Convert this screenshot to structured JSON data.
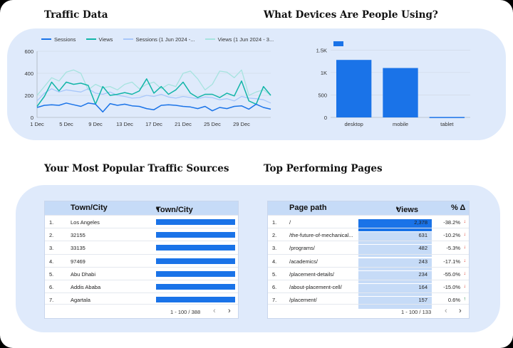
{
  "headings": {
    "traffic": "Traffic Data",
    "devices": "What Devices Are People Using?",
    "sources": "Your Most Popular Traffic Sources",
    "pages": "Top Performing Pages"
  },
  "line_legend": [
    {
      "label": "Sessions",
      "color": "#1a73e8"
    },
    {
      "label": "Views",
      "color": "#12b5a8"
    },
    {
      "label": "Sessions (1 Jun 2024 -...",
      "color": "#a8c7fa"
    },
    {
      "label": "Views (1 Jun 2024 - 3...",
      "color": "#a6e3df"
    }
  ],
  "chart_data": [
    {
      "type": "line",
      "x_tick_labels": [
        "1 Dec",
        "5 Dec",
        "9 Dec",
        "13 Dec",
        "17 Dec",
        "21 Dec",
        "25 Dec",
        "29 Dec"
      ],
      "y_tick_labels": [
        "0",
        "200",
        "400",
        "600"
      ],
      "ylim": [
        0,
        600
      ],
      "grid": true,
      "legend_position": "top",
      "series": [
        {
          "name": "Sessions",
          "color": "#1a73e8",
          "values": [
            90,
            110,
            115,
            110,
            130,
            115,
            100,
            130,
            120,
            50,
            125,
            110,
            120,
            105,
            100,
            80,
            70,
            110,
            115,
            110,
            100,
            95,
            80,
            100,
            60,
            90,
            80,
            100,
            105,
            75,
            120,
            90,
            75
          ]
        },
        {
          "name": "Views",
          "color": "#12b5a8",
          "values": [
            100,
            190,
            320,
            240,
            320,
            300,
            310,
            290,
            120,
            280,
            200,
            210,
            225,
            210,
            240,
            350,
            220,
            280,
            210,
            250,
            320,
            220,
            180,
            210,
            210,
            180,
            220,
            195,
            330,
            150,
            120,
            280,
            200
          ]
        },
        {
          "name": "Sessions (1 Jun 2024 -...",
          "color": "#a8c7fa",
          "values": [
            150,
            220,
            260,
            230,
            250,
            240,
            230,
            260,
            220,
            210,
            230,
            200,
            190,
            175,
            180,
            200,
            190,
            210,
            185,
            175,
            190,
            180,
            170,
            185,
            180,
            160,
            170,
            150,
            190,
            175,
            170,
            160,
            130
          ]
        },
        {
          "name": "Views (1 Jun 2024 - 3...",
          "color": "#a6e3df",
          "values": [
            200,
            280,
            360,
            330,
            410,
            430,
            400,
            250,
            300,
            270,
            280,
            250,
            300,
            320,
            260,
            300,
            320,
            260,
            300,
            280,
            400,
            420,
            350,
            250,
            300,
            420,
            410,
            360,
            430,
            200,
            230,
            250,
            200
          ]
        }
      ]
    },
    {
      "type": "bar",
      "categories": [
        "desktop",
        "mobile",
        "tablet"
      ],
      "values": [
        1280,
        1100,
        10
      ],
      "y_tick_labels": [
        "0",
        "500",
        "1K",
        "1.5K"
      ],
      "ylim": [
        0,
        1600
      ],
      "grid": true,
      "color": "#1a73e8"
    }
  ],
  "sources_table": {
    "col1": "Town/City",
    "col2": "Town/City",
    "sort_icon": "▾",
    "rows": [
      {
        "n": "1.",
        "city": "Los Angeles",
        "share": 1.0
      },
      {
        "n": "2.",
        "city": "32155",
        "share": 1.0
      },
      {
        "n": "3.",
        "city": "33135",
        "share": 1.0
      },
      {
        "n": "4.",
        "city": "97469",
        "share": 1.0
      },
      {
        "n": "5.",
        "city": "Abu Dhabi",
        "share": 1.0
      },
      {
        "n": "6.",
        "city": "Addis Ababa",
        "share": 1.0
      },
      {
        "n": "7.",
        "city": "Agartala",
        "share": 1.0
      }
    ],
    "pager": "1 - 100 / 388",
    "prev": "‹",
    "next": "›"
  },
  "pages_table": {
    "col1": "Page path",
    "col2": "Views",
    "col3": "% Δ",
    "sort_icon": "▾",
    "rows": [
      {
        "n": "1.",
        "path": "/",
        "views": "2,378",
        "delta": "-38.2%",
        "dir": "down"
      },
      {
        "n": "2.",
        "path": "/the-future-of-mechanical...",
        "views": "631",
        "delta": "-10.2%",
        "dir": "down"
      },
      {
        "n": "3.",
        "path": "/programs/",
        "views": "482",
        "delta": "-5.3%",
        "dir": "down"
      },
      {
        "n": "4.",
        "path": "/academics/",
        "views": "243",
        "delta": "-17.1%",
        "dir": "down"
      },
      {
        "n": "5.",
        "path": "/placement-details/",
        "views": "234",
        "delta": "-55.0%",
        "dir": "down"
      },
      {
        "n": "6.",
        "path": "/about-placement-cell/",
        "views": "164",
        "delta": "-15.0%",
        "dir": "down"
      },
      {
        "n": "7.",
        "path": "/placement/",
        "views": "157",
        "delta": "0.6%",
        "dir": "up"
      }
    ],
    "pager": "1 - 100 / 133",
    "prev": "‹",
    "next": "›"
  }
}
